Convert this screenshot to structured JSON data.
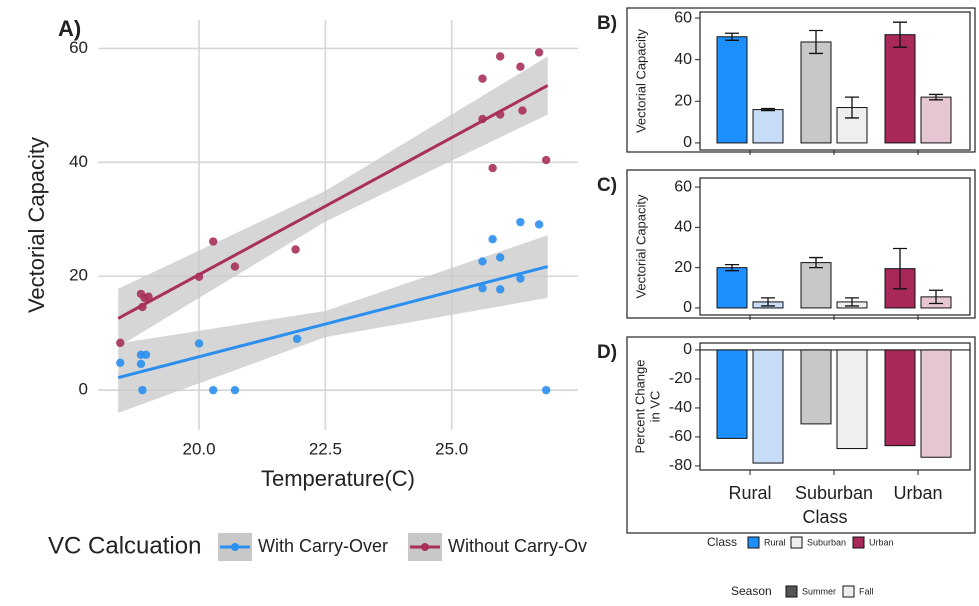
{
  "chart_data": [
    {
      "type": "scatter",
      "label": "A)",
      "xlabel": "Temperature(C)",
      "ylabel": "Vectorial Capacity",
      "xlim": [
        18.0,
        27.5
      ],
      "ylim": [
        -7,
        65
      ],
      "xticks": [
        {
          "value": 20,
          "label": "20.0"
        },
        {
          "value": 22.5,
          "label": "22.5"
        },
        {
          "value": 25,
          "label": "25.0"
        }
      ],
      "yticks": [
        0,
        20,
        40,
        60
      ],
      "grid": true,
      "legend_title": "VC Calcuation",
      "band_color": "#c8c8c8",
      "series": [
        {
          "name": "With Carry-Over",
          "color": "#2b8ff0",
          "x": [
            18.44,
            18.85,
            18.85,
            18.88,
            18.95,
            20.0,
            20.28,
            20.71,
            21.94,
            25.61,
            25.61,
            25.81,
            25.96,
            25.96,
            26.36,
            26.36,
            26.73,
            26.87
          ],
          "values": [
            4.8,
            6.2,
            4.6,
            0,
            6.2,
            8.2,
            0,
            0,
            9.0,
            22.6,
            17.9,
            26.5,
            23.3,
            17.7,
            29.5,
            19.6,
            29.1,
            0
          ],
          "fit": {
            "x": [
              18.4,
              22.5,
              26.9
            ],
            "values": [
              2.2,
              11.6,
              21.7
            ],
            "lower": [
              -4,
              9.3,
              16.2
            ],
            "upper": [
              8.2,
              13.9,
              27.2
            ]
          }
        },
        {
          "name": "Without Carry-Ov",
          "color": "#a8305a",
          "x": [
            18.44,
            18.85,
            18.88,
            18.92,
            19.0,
            20.0,
            20.28,
            20.71,
            21.91,
            25.61,
            25.61,
            25.81,
            25.96,
            25.96,
            26.36,
            26.4,
            26.73,
            26.87
          ],
          "values": [
            8.3,
            16.9,
            14.6,
            16.2,
            16.4,
            19.9,
            26.1,
            21.7,
            24.7,
            54.7,
            47.6,
            39.0,
            58.6,
            48.4,
            56.8,
            49.1,
            59.3,
            40.4
          ],
          "fit": {
            "x": [
              18.4,
              22.5,
              26.9
            ],
            "values": [
              12.6,
              32.3,
              53.5
            ],
            "lower": [
              7.6,
              29.6,
              48.4
            ],
            "upper": [
              17.8,
              35.0,
              58.6
            ]
          }
        }
      ]
    },
    {
      "type": "bar",
      "label": "B)",
      "ylabel": [
        "Vectorial Capacity"
      ],
      "categories": [
        null,
        null,
        null
      ],
      "ylim": [
        -3.4,
        62.9
      ],
      "yticks": [
        0,
        20,
        40,
        60
      ],
      "series": [
        {
          "name": "Summer",
          "colors": [
            "#1e8fff",
            "#c8c8c8",
            "#a8285a"
          ],
          "values": [
            51,
            48.5,
            52
          ],
          "errors": [
            1.7,
            5.5,
            6
          ]
        },
        {
          "name": "Fall",
          "colors": [
            "#c6dcf7",
            "#efefef",
            "#e6c6d2"
          ],
          "values": [
            16,
            17,
            22
          ],
          "errors": [
            0.5,
            5,
            1.3
          ]
        }
      ]
    },
    {
      "type": "bar",
      "label": "C)",
      "ylabel": [
        "Vectorial Capacity"
      ],
      "categories": [
        null,
        null,
        null
      ],
      "ylim": [
        -3.5,
        64.5
      ],
      "yticks": [
        0,
        20,
        40,
        60
      ],
      "series": [
        {
          "name": "Summer",
          "colors": [
            "#1e8fff",
            "#c8c8c8",
            "#a8285a"
          ],
          "values": [
            20,
            22.5,
            19.5
          ],
          "errors": [
            1.5,
            2.5,
            10
          ]
        },
        {
          "name": "Fall",
          "colors": [
            "#c6dcf7",
            "#efefef",
            "#e6c6d2"
          ],
          "values": [
            3,
            3,
            5.5
          ],
          "errors": [
            2,
            2,
            3.3
          ]
        }
      ]
    },
    {
      "type": "bar",
      "label": "D)",
      "ylabel": [
        "Percent Change",
        "in VC"
      ],
      "xlabel": "Class",
      "categories": [
        "Rural",
        "Suburban",
        "Urban"
      ],
      "ylim": [
        -82.8,
        4.8
      ],
      "yticks": [
        0,
        -20,
        -40,
        -60,
        -80
      ],
      "series": [
        {
          "name": "Summer",
          "colors": [
            "#1e8fff",
            "#c8c8c8",
            "#a8285a"
          ],
          "values": [
            -61,
            -51,
            -66
          ]
        },
        {
          "name": "Fall",
          "colors": [
            "#c6dcf7",
            "#efefef",
            "#e6c6d2"
          ],
          "values": [
            -78,
            -68,
            -74
          ]
        }
      ]
    }
  ],
  "legend": {
    "class": {
      "title": "Class",
      "items": [
        {
          "name": "Rural",
          "color": "#1e8fff"
        },
        {
          "name": "Suburban",
          "color": "#efefef"
        },
        {
          "name": "Urban",
          "color": "#a8285a"
        }
      ]
    },
    "season": {
      "title": "Season",
      "items": [
        {
          "name": "Summer",
          "color": "#555555"
        },
        {
          "name": "Fall",
          "color": "#eeeeee"
        }
      ]
    }
  }
}
